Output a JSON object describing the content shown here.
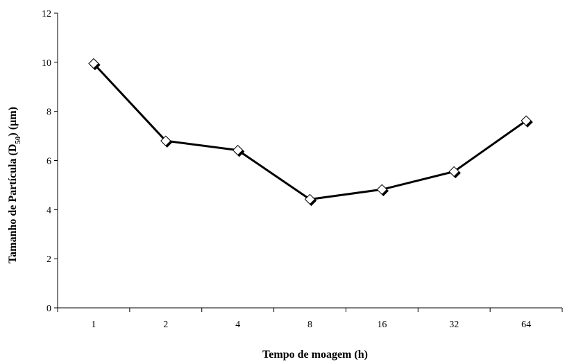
{
  "chart_data": {
    "type": "line",
    "title": "",
    "xlabel": "Tempo de moagem (h)",
    "ylabel": "Tamanho de Partícula (D50) (µm)",
    "ylabel_main": "Tamanho de Partícula (D",
    "ylabel_subscript": "50",
    "ylabel_tail": ") (µm)",
    "categories": [
      "1",
      "2",
      "4",
      "8",
      "16",
      "32",
      "64"
    ],
    "values": [
      9.95,
      6.8,
      6.42,
      4.42,
      4.82,
      5.55,
      7.62
    ],
    "ylim": [
      0,
      12
    ],
    "yticks": [
      0,
      2,
      4,
      6,
      8,
      10,
      12
    ],
    "grid": false,
    "legend": "none",
    "colors": {
      "line": "#000000",
      "marker_fill": "#ffffff",
      "marker_shadow": "#000000",
      "axis": "#000000"
    }
  }
}
